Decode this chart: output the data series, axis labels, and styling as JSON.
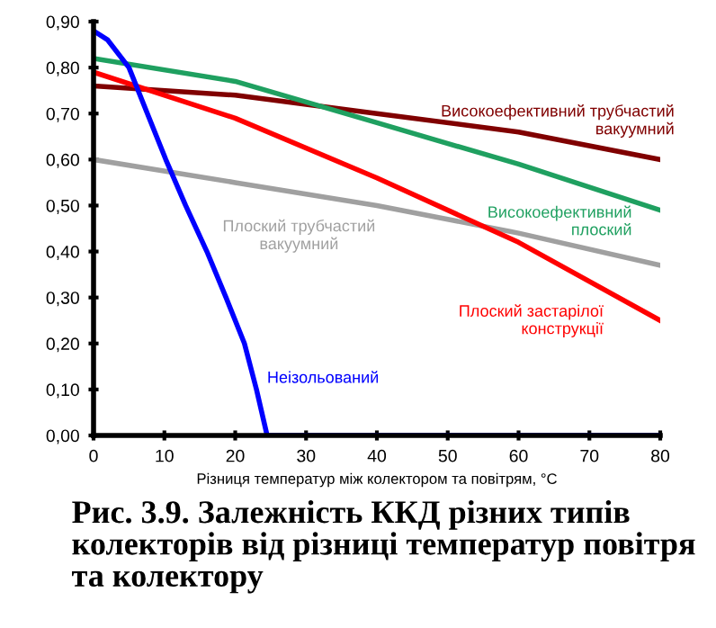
{
  "chart_data": {
    "type": "line",
    "title": "Рис. 3.9. Залежність ККД різних типів колекторів від різниці температур повітря та колектору",
    "xlabel": "Різниця температур між колектором та повітрям, °С",
    "series": [
      {
        "name": "Високоефективний трубчастий\nвакуумний",
        "color": "#800000",
        "x": [
          0,
          20,
          40,
          60,
          80
        ],
        "values": [
          0.76,
          0.74,
          0.7,
          0.66,
          0.6
        ]
      },
      {
        "name": "Високоефективний\nплоский",
        "color": "#1fa060",
        "x": [
          0,
          20,
          40,
          60,
          80
        ],
        "values": [
          0.82,
          0.77,
          0.68,
          0.59,
          0.49
        ]
      },
      {
        "name": "Плоский трубчастий\nвакуумний",
        "color": "#a0a0a0",
        "x": [
          0,
          20,
          40,
          60,
          80
        ],
        "values": [
          0.6,
          0.55,
          0.5,
          0.44,
          0.37
        ]
      },
      {
        "name": "Плоский застарілої\nконструкції",
        "color": "#ff0000",
        "x": [
          0,
          20,
          40,
          60,
          80
        ],
        "values": [
          0.79,
          0.69,
          0.56,
          0.42,
          0.25
        ]
      },
      {
        "name": "Неізольований",
        "color": "#0000ff",
        "x": [
          0,
          2,
          5,
          7.6,
          10.2,
          13,
          16,
          18.7,
          21.3,
          23,
          24.5,
          80
        ],
        "values": [
          0.88,
          0.86,
          0.8,
          0.7,
          0.6,
          0.5,
          0.4,
          0.3,
          0.2,
          0.1,
          0.0,
          0.0
        ]
      }
    ],
    "xlim": [
      0,
      80
    ],
    "xticks": [
      0,
      10,
      20,
      30,
      40,
      50,
      60,
      70,
      80
    ],
    "ylim": [
      0,
      0.9
    ],
    "yticks": [
      {
        "value": 0,
        "label": "0,00"
      },
      {
        "value": 0.1,
        "label": "0,10"
      },
      {
        "value": 0.2,
        "label": "0,20"
      },
      {
        "value": 0.3,
        "label": "0,30"
      },
      {
        "value": 0.4,
        "label": "0,40"
      },
      {
        "value": 0.5,
        "label": "0,50"
      },
      {
        "value": 0.6,
        "label": "0,60"
      },
      {
        "value": 0.7,
        "label": "0,70"
      },
      {
        "value": 0.8,
        "label": "0,80"
      },
      {
        "value": 0.9,
        "label": "0,90"
      }
    ],
    "grid": false,
    "legend": false
  }
}
